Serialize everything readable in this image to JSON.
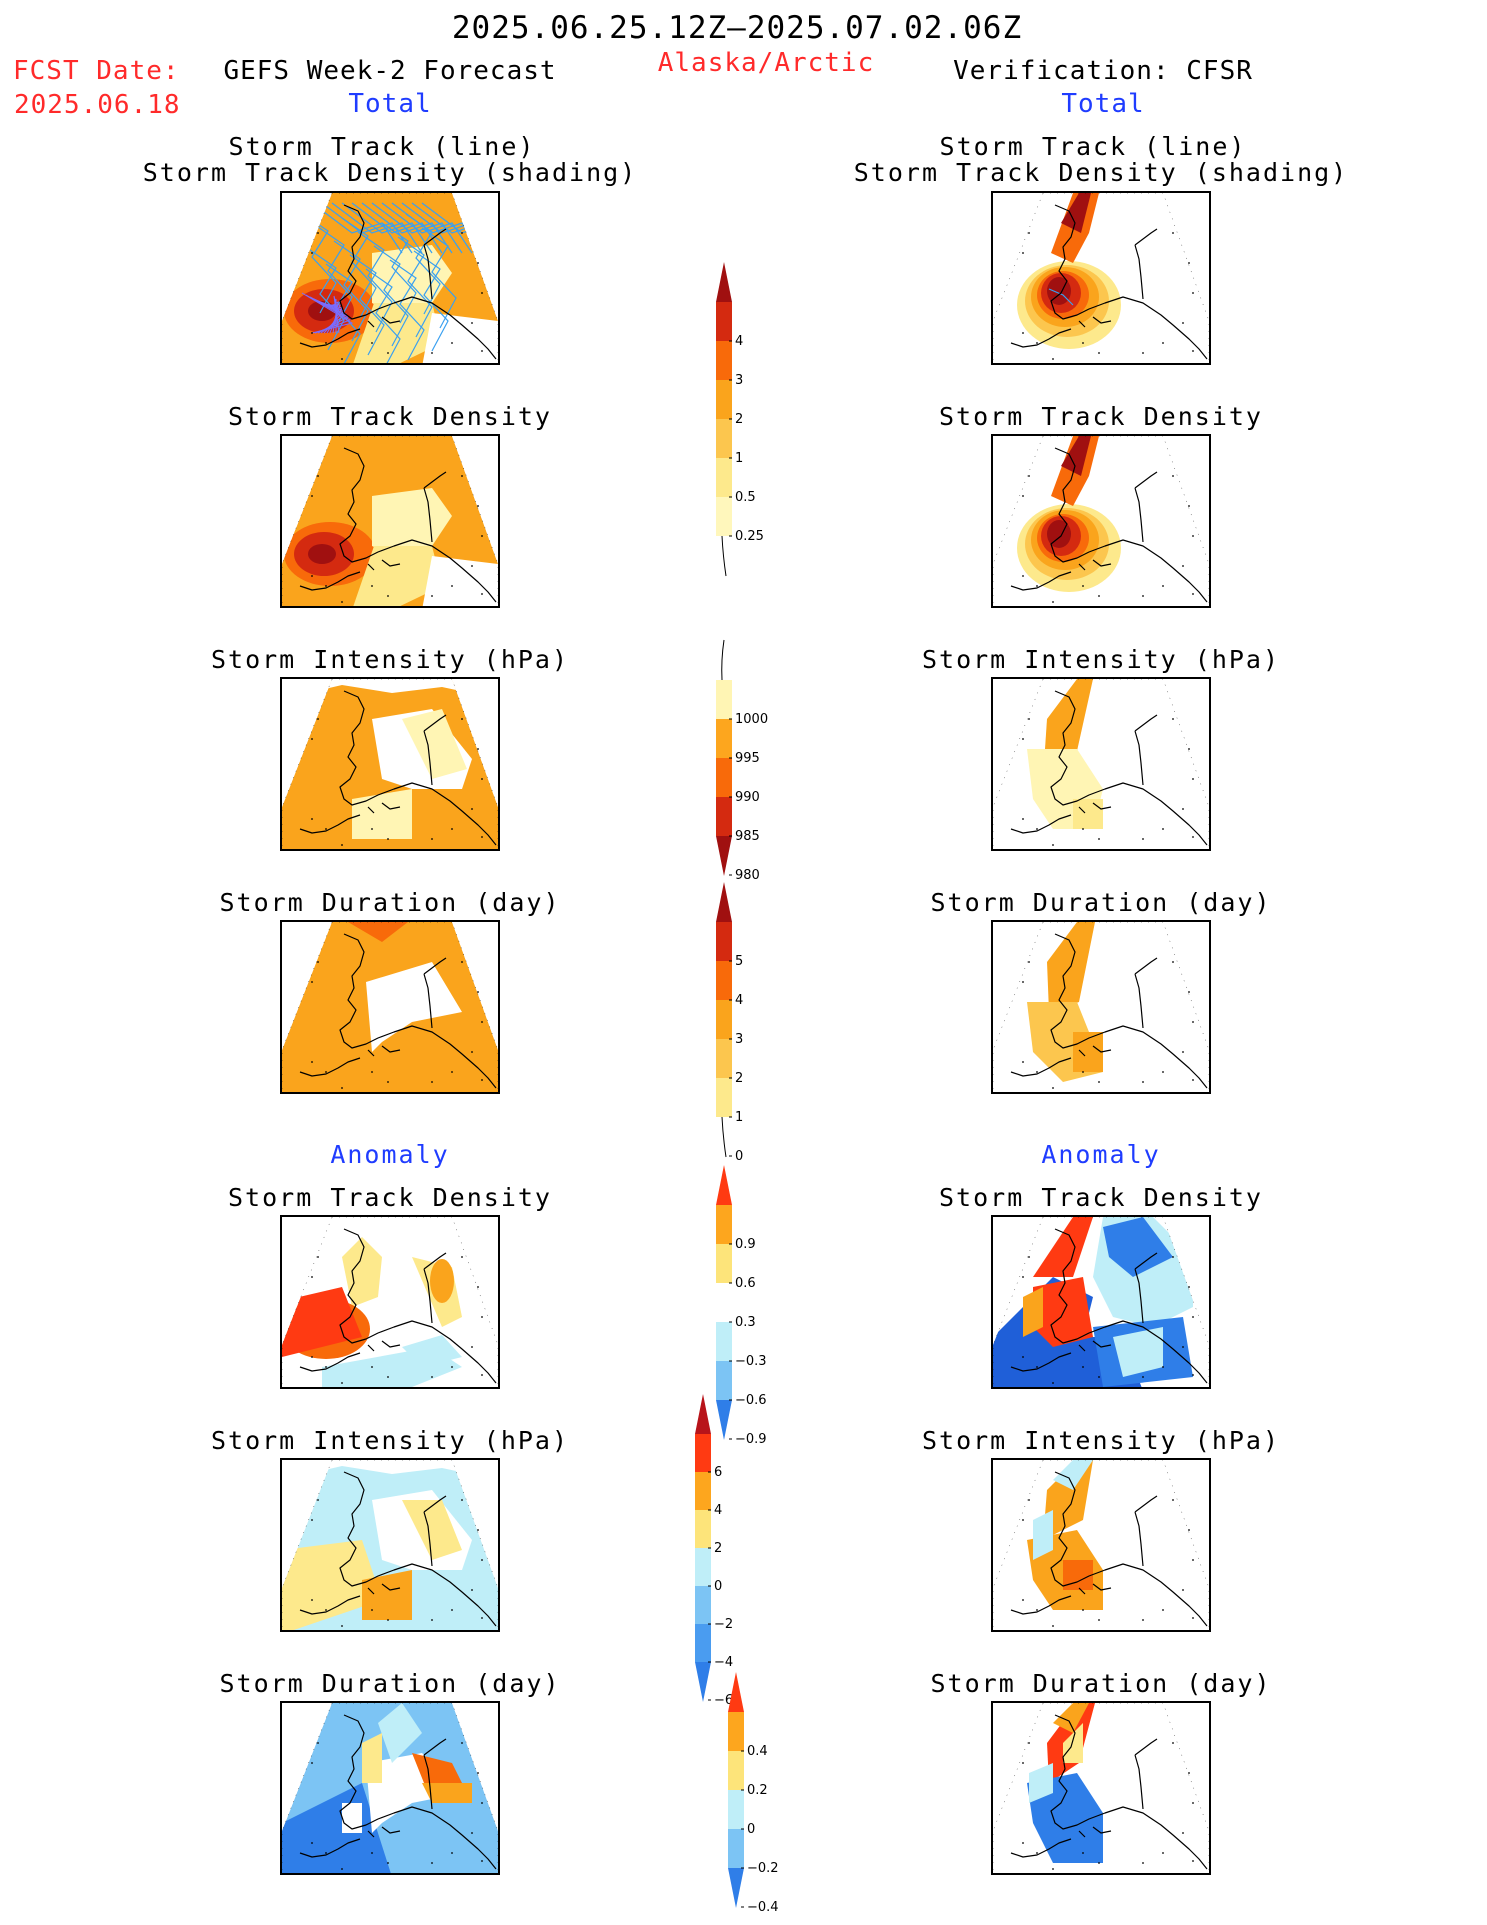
{
  "header": {
    "date_range": "2025.06.25.12Z–2025.07.02.06Z",
    "fcst_label": "FCST Date:",
    "fcst_date": "2025.06.18",
    "left_title": "GEFS Week-2 Forecast",
    "region": "Alaska/Arctic",
    "right_title": "Verification: CFSR",
    "total_left": "Total",
    "total_right": "Total",
    "anomaly_left": "Anomaly",
    "anomaly_right": "Anomaly"
  },
  "panels": {
    "track_line": "Storm Track (line)",
    "track_shading": "Storm Track Density (shading)",
    "density": "Storm Track Density",
    "intensity": "Storm Intensity (hPa)",
    "duration": "Storm Duration (day)"
  },
  "colorbars": {
    "density_total": {
      "ticks": [
        "4",
        "3",
        "2",
        "1",
        "0.5",
        "0.25"
      ],
      "colors": [
        "#a01010",
        "#d42a10",
        "#f86a0a",
        "#faa41c",
        "#fcc64e",
        "#fde98c",
        "#fff7bc"
      ]
    },
    "intensity_total": {
      "ticks": [
        "1000",
        "995",
        "990",
        "985",
        "980"
      ],
      "colors": [
        "#fff5b4",
        "#fda61e",
        "#f86a0a",
        "#d42a10",
        "#a01010"
      ]
    },
    "duration_total": {
      "ticks": [
        "5",
        "4",
        "3",
        "2",
        "1",
        "0"
      ],
      "colors": [
        "#a01010",
        "#d42a10",
        "#f86a0a",
        "#faa41c",
        "#fcc64e",
        "#fde98c"
      ]
    },
    "density_anom": {
      "ticks": [
        "0.9",
        "0.6",
        "0.3",
        "−0.3",
        "−0.6",
        "−0.9"
      ],
      "colors": [
        "#ff3a12",
        "#fda61e",
        "#fde47a",
        "#ffffff",
        "#bfeef8",
        "#7cc4f4",
        "#2f7ee8"
      ]
    },
    "intensity_anom": {
      "ticks": [
        "6",
        "4",
        "2",
        "0",
        "−2",
        "−4",
        "−6"
      ],
      "colors": [
        "#b8141a",
        "#ff3a12",
        "#fda61e",
        "#fde47a",
        "#bfeef8",
        "#7cc4f4",
        "#4a9cf0",
        "#2f7ee8"
      ]
    },
    "duration_anom": {
      "ticks": [
        "0.4",
        "0.2",
        "0",
        "−0.2",
        "−0.4"
      ],
      "colors": [
        "#ff3a12",
        "#fda61e",
        "#fde47a",
        "#bfeef8",
        "#7cc4f4",
        "#2f7ee8"
      ]
    }
  }
}
